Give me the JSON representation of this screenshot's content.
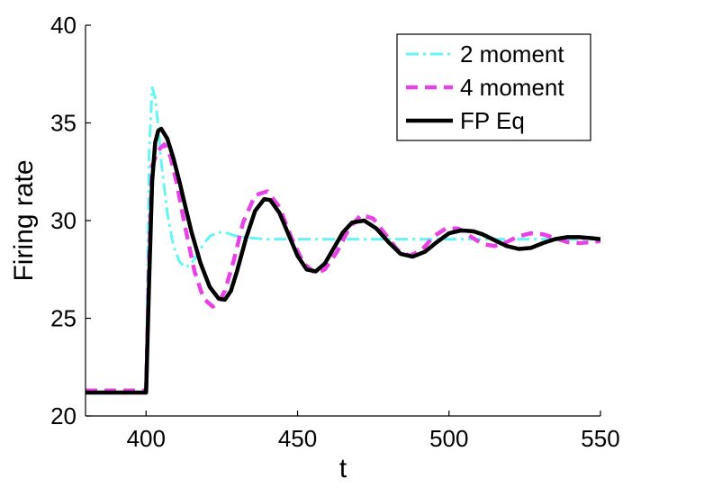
{
  "chart_data": {
    "type": "line",
    "xlabel": "t",
    "ylabel": "Firing rate",
    "xlim": [
      380,
      550
    ],
    "ylim": [
      20,
      40
    ],
    "xticks": [
      400,
      450,
      500,
      550
    ],
    "yticks": [
      20,
      25,
      30,
      35,
      40
    ],
    "legend_position": "top-right",
    "series": [
      {
        "name": "2 moment",
        "color": "#66f5f5",
        "style": "dash-dot",
        "x": [
          380,
          399.5,
          400,
          401,
          402,
          403,
          404,
          405,
          407,
          409,
          411,
          413,
          415,
          417,
          419,
          421,
          424,
          427,
          430,
          435,
          440,
          450,
          500,
          550
        ],
        "y": [
          21.2,
          21.2,
          21.2,
          33.5,
          36.8,
          36.3,
          34.8,
          33.0,
          30.4,
          28.7,
          27.9,
          27.6,
          27.8,
          28.3,
          28.8,
          29.2,
          29.4,
          29.35,
          29.2,
          29.1,
          29.05,
          29.05,
          29.05,
          29.05
        ]
      },
      {
        "name": "4 moment",
        "color": "#e642e6",
        "style": "dashed",
        "x": [
          380,
          399.5,
          400,
          401,
          402,
          404,
          406,
          408,
          410,
          413,
          416,
          419,
          422,
          424,
          426,
          429,
          432,
          436,
          440,
          444,
          448,
          452,
          456,
          459,
          463,
          467,
          471,
          475,
          479,
          483,
          487,
          491,
          495,
          499,
          503,
          507,
          511,
          515,
          519,
          523,
          527,
          531,
          535,
          539,
          543,
          547,
          550
        ],
        "y": [
          21.3,
          21.3,
          21.3,
          28.0,
          32.8,
          33.6,
          33.9,
          33.3,
          32.0,
          29.6,
          27.4,
          26.0,
          25.6,
          25.8,
          26.4,
          28.0,
          29.9,
          31.3,
          31.5,
          30.7,
          29.1,
          27.8,
          27.3,
          27.5,
          28.4,
          29.6,
          30.3,
          30.1,
          29.3,
          28.5,
          28.2,
          28.5,
          29.2,
          29.6,
          29.6,
          29.2,
          28.8,
          28.7,
          28.9,
          29.2,
          29.35,
          29.3,
          29.1,
          28.9,
          28.85,
          28.9,
          28.95
        ]
      },
      {
        "name": "FP Eq",
        "color": "#000000",
        "style": "solid",
        "x": [
          380,
          399.5,
          400,
          401,
          402,
          403,
          404,
          405,
          407,
          409,
          411,
          413,
          415,
          418,
          421,
          424,
          426,
          428,
          430,
          433,
          436,
          439,
          441,
          444,
          447,
          450,
          453,
          456,
          459,
          462,
          465,
          468,
          472,
          476,
          480,
          484,
          488,
          492,
          496,
          500,
          504,
          508,
          511,
          515,
          519,
          523,
          527,
          531,
          535,
          539,
          543,
          547,
          550
        ],
        "y": [
          21.2,
          21.2,
          21.2,
          27.0,
          32.0,
          34.0,
          34.6,
          34.7,
          34.2,
          33.2,
          32.0,
          30.7,
          29.4,
          27.8,
          26.6,
          26.0,
          25.95,
          26.4,
          27.4,
          29.1,
          30.5,
          31.1,
          31.05,
          30.4,
          29.3,
          28.2,
          27.5,
          27.4,
          27.8,
          28.6,
          29.4,
          29.9,
          30.0,
          29.6,
          28.9,
          28.3,
          28.15,
          28.4,
          28.9,
          29.35,
          29.5,
          29.45,
          29.3,
          29.0,
          28.7,
          28.55,
          28.6,
          28.85,
          29.05,
          29.15,
          29.15,
          29.1,
          29.05
        ]
      }
    ]
  }
}
